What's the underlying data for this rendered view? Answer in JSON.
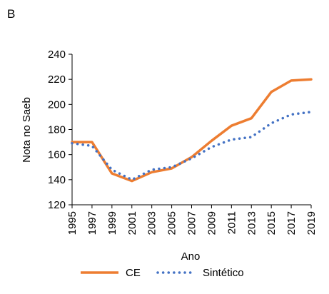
{
  "panel_label": "B",
  "chart_data": {
    "type": "line",
    "xlabel": "Ano",
    "ylabel": "Nota no Saeb",
    "ylim": [
      120,
      240
    ],
    "yticks": [
      120,
      140,
      160,
      180,
      200,
      220,
      240
    ],
    "xlim": [
      1995,
      2019
    ],
    "xticks": [
      1995,
      1997,
      1999,
      2001,
      2003,
      2005,
      2007,
      2009,
      2011,
      2013,
      2015,
      2017,
      2019
    ],
    "grid": false,
    "legend": "bottom",
    "series": [
      {
        "name": "CE",
        "color": "#ED7D31",
        "style": "solid",
        "points": [
          [
            1995,
            170
          ],
          [
            1997,
            170
          ],
          [
            1999,
            145
          ],
          [
            2001,
            139
          ],
          [
            2003,
            146
          ],
          [
            2005,
            149
          ],
          [
            2007,
            158
          ],
          [
            2009,
            171
          ],
          [
            2011,
            183
          ],
          [
            2013,
            189
          ],
          [
            2015,
            210
          ],
          [
            2017,
            219
          ],
          [
            2019,
            220
          ]
        ]
      },
      {
        "name": "Sintético",
        "color": "#4472C4",
        "style": "dotted",
        "points": [
          [
            1995,
            169
          ],
          [
            1997,
            167
          ],
          [
            1999,
            148
          ],
          [
            2001,
            140
          ],
          [
            2003,
            148
          ],
          [
            2005,
            150
          ],
          [
            2007,
            157
          ],
          [
            2009,
            166
          ],
          [
            2011,
            172
          ],
          [
            2013,
            174
          ],
          [
            2015,
            185
          ],
          [
            2017,
            192
          ],
          [
            2019,
            194
          ]
        ]
      }
    ]
  }
}
